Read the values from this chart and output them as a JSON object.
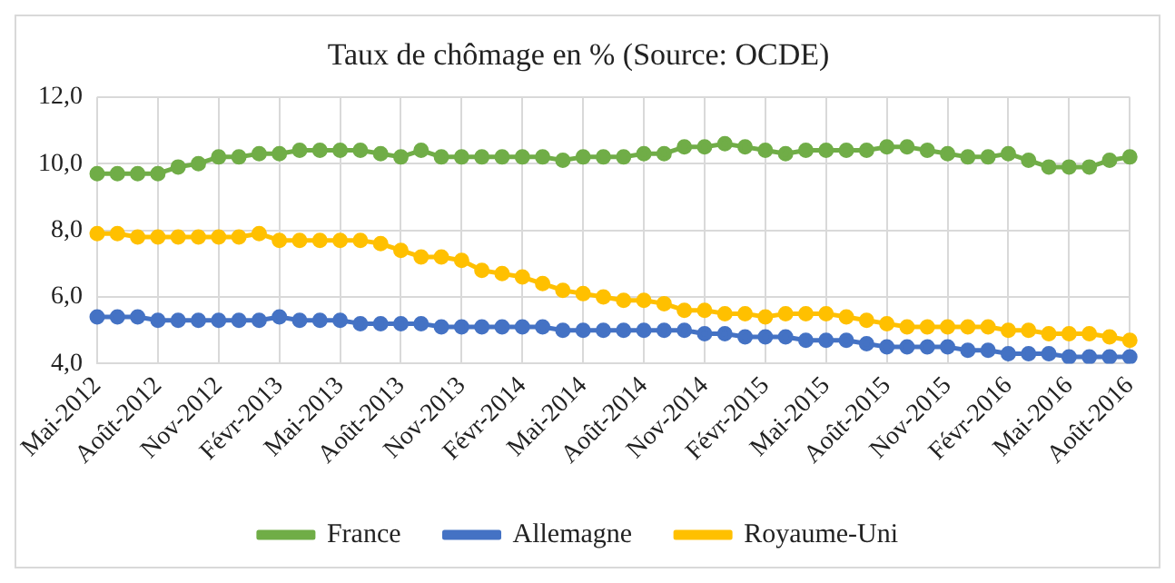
{
  "chart_data": {
    "type": "line",
    "title": "Taux de chômage en % (Source: OCDE)",
    "categories": [
      "Mai-2012",
      null,
      null,
      "Août-2012",
      null,
      null,
      "Nov-2012",
      null,
      null,
      "Févr-2013",
      null,
      null,
      "Mai-2013",
      null,
      null,
      "Août-2013",
      null,
      null,
      "Nov-2013",
      null,
      null,
      "Févr-2014",
      null,
      null,
      "Mai-2014",
      null,
      null,
      "Août-2014",
      null,
      null,
      "Nov-2014",
      null,
      null,
      "Févr-2015",
      null,
      null,
      "Mai-2015",
      null,
      null,
      "Août-2015",
      null,
      null,
      "Nov-2015",
      null,
      null,
      "Févr-2016",
      null,
      null,
      "Mai-2016",
      null,
      null,
      "Août-2016"
    ],
    "series": [
      {
        "name": "France",
        "color": "#70ad47",
        "values": [
          9.7,
          9.7,
          9.7,
          9.7,
          9.9,
          10.0,
          10.2,
          10.2,
          10.3,
          10.3,
          10.4,
          10.4,
          10.4,
          10.4,
          10.3,
          10.2,
          10.4,
          10.2,
          10.2,
          10.2,
          10.2,
          10.2,
          10.2,
          10.1,
          10.2,
          10.2,
          10.2,
          10.3,
          10.3,
          10.5,
          10.5,
          10.6,
          10.5,
          10.4,
          10.3,
          10.4,
          10.4,
          10.4,
          10.4,
          10.5,
          10.5,
          10.4,
          10.3,
          10.2,
          10.2,
          10.3,
          10.1,
          9.9,
          9.9,
          9.9,
          10.1,
          10.2
        ]
      },
      {
        "name": "Allemagne",
        "color": "#4472c4",
        "values": [
          5.4,
          5.4,
          5.4,
          5.3,
          5.3,
          5.3,
          5.3,
          5.3,
          5.3,
          5.4,
          5.3,
          5.3,
          5.3,
          5.2,
          5.2,
          5.2,
          5.2,
          5.1,
          5.1,
          5.1,
          5.1,
          5.1,
          5.1,
          5.0,
          5.0,
          5.0,
          5.0,
          5.0,
          5.0,
          5.0,
          4.9,
          4.9,
          4.8,
          4.8,
          4.8,
          4.7,
          4.7,
          4.7,
          4.6,
          4.5,
          4.5,
          4.5,
          4.5,
          4.4,
          4.4,
          4.3,
          4.3,
          4.3,
          4.2,
          4.2,
          4.2,
          4.2
        ]
      },
      {
        "name": "Royaume-Uni",
        "color": "#ffc000",
        "values": [
          7.9,
          7.9,
          7.8,
          7.8,
          7.8,
          7.8,
          7.8,
          7.8,
          7.9,
          7.7,
          7.7,
          7.7,
          7.7,
          7.7,
          7.6,
          7.4,
          7.2,
          7.2,
          7.1,
          6.8,
          6.7,
          6.6,
          6.4,
          6.2,
          6.1,
          6.0,
          5.9,
          5.9,
          5.8,
          5.6,
          5.6,
          5.5,
          5.5,
          5.4,
          5.5,
          5.5,
          5.5,
          5.4,
          5.3,
          5.2,
          5.1,
          5.1,
          5.1,
          5.1,
          5.1,
          5.0,
          5.0,
          4.9,
          4.9,
          4.9,
          4.8,
          4.7
        ]
      }
    ],
    "ylim": [
      4,
      12
    ],
    "yticks": [
      {
        "value": 4,
        "label": "4,0"
      },
      {
        "value": 6,
        "label": "6,0"
      },
      {
        "value": 8,
        "label": "8,0"
      },
      {
        "value": 10,
        "label": "10,0"
      },
      {
        "value": 12,
        "label": "12,0"
      }
    ],
    "grid": true,
    "legend": "bottom",
    "marker": "circle",
    "line_style": "solid"
  }
}
